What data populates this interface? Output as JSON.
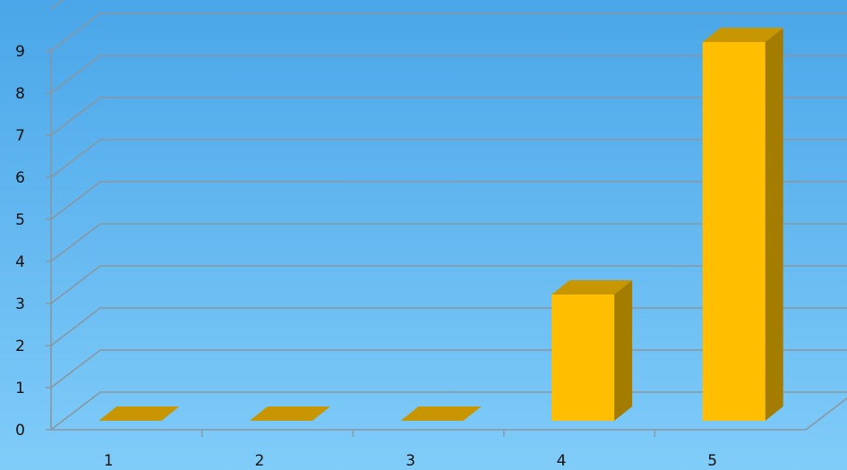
{
  "chart_data": {
    "type": "bar",
    "categories": [
      "1",
      "2",
      "3",
      "4",
      "5"
    ],
    "values": [
      0,
      0,
      0,
      3,
      9
    ],
    "title": "",
    "xlabel": "",
    "ylabel": "",
    "ylim": [
      0,
      10
    ],
    "y_ticks": [
      "0",
      "1",
      "2",
      "3",
      "4",
      "5",
      "6",
      "7",
      "8",
      "9"
    ],
    "grid": true,
    "legend": "none",
    "style": "3d-column",
    "colors": {
      "background_top": "#4aa6e8",
      "background_bottom": "#80ccf9",
      "bar_front": "#ffbf00",
      "bar_top": "#c89600",
      "bar_side": "#a37c00",
      "gridline": "#8a96a0",
      "axis": "#8a96a0"
    }
  }
}
